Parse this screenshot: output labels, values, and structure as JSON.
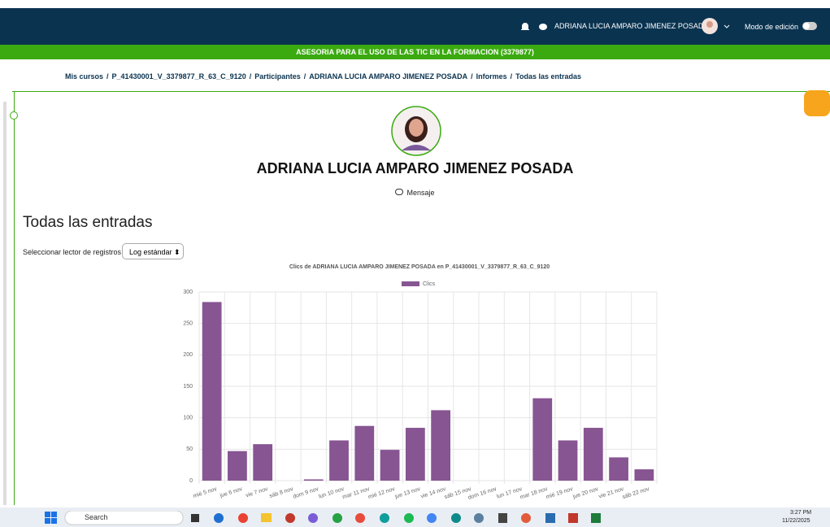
{
  "header": {
    "user": "ADRIANA LUCIA AMPARO JIMENEZ POSADA",
    "edit_mode": "Modo de edición"
  },
  "course_bar": "ASESORIA PARA EL USO DE LAS TIC EN LA FORMACION (3379877)",
  "breadcrumb": {
    "separator": "/",
    "items": [
      "Mis cursos",
      "P_41430001_V_3379877_R_63_C_9120",
      "Participantes",
      "ADRIANA LUCIA AMPARO JIMENEZ POSADA",
      "Informes",
      "Todas las entradas"
    ]
  },
  "profile": {
    "name": "ADRIANA LUCIA AMPARO JIMENEZ POSADA",
    "message": "Mensaje"
  },
  "page": {
    "heading": "Todas las entradas",
    "selector_label": "Seleccionar lector de registros",
    "selector_value": "Log estándar"
  },
  "chart_data": {
    "type": "bar",
    "title": "Clics de ADRIANA LUCIA AMPARO JIMENEZ POSADA  en P_41430001_V_3379877_R_63_C_9120",
    "categories": [
      "mié 5 nov",
      "jue 6 nov",
      "vie 7 nov",
      "sáb 8 nov",
      "dom 9 nov",
      "lun 10 nov",
      "mar 11 nov",
      "mié 12 nov",
      "jue 13 nov",
      "vie 14 nov",
      "sáb 15 nov",
      "dom 16 nov",
      "lun 17 nov",
      "mar 18 nov",
      "mié 19 nov",
      "jue 20 nov",
      "vie 21 nov",
      "sáb 22 nov"
    ],
    "series": [
      {
        "name": "Clics",
        "color": "#875592",
        "values": [
          284,
          47,
          58,
          0,
          2,
          64,
          87,
          49,
          84,
          112,
          0,
          0,
          0,
          131,
          64,
          84,
          37,
          18
        ]
      }
    ],
    "ylim": [
      0,
      300
    ],
    "yticks": [
      0,
      50,
      100,
      150,
      200,
      250,
      300
    ],
    "grid": true,
    "legend": "top"
  },
  "taskbar": {
    "search": "Search",
    "time": "3:27 PM",
    "date": "11/22/2025"
  }
}
